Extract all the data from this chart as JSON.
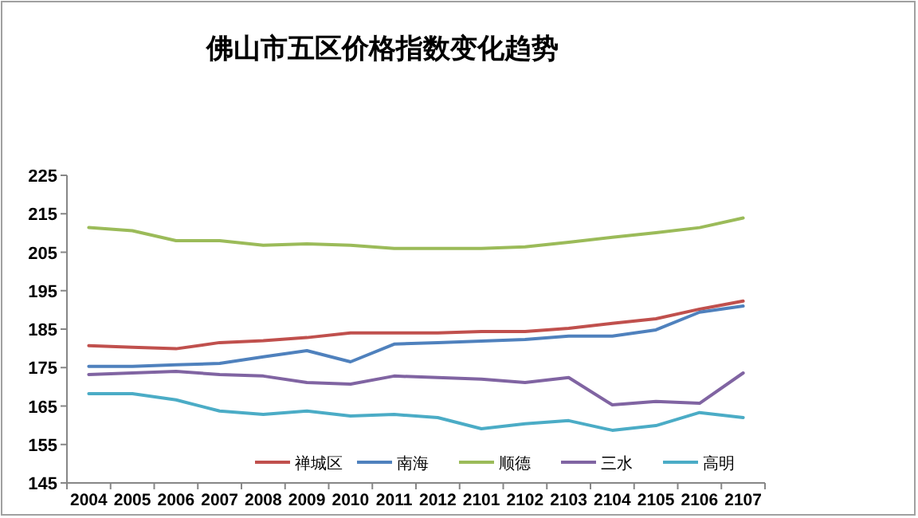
{
  "chart_data": {
    "type": "line",
    "title": "佛山市五区价格指数变化趋势",
    "categories": [
      "2004",
      "2005",
      "2006",
      "2007",
      "2008",
      "2009",
      "2010",
      "2011",
      "2012",
      "2101",
      "2102",
      "2103",
      "2104",
      "2105",
      "2106",
      "2107"
    ],
    "ylim": [
      145,
      225
    ],
    "yticks": [
      145,
      155,
      165,
      175,
      185,
      195,
      205,
      215,
      225
    ],
    "grid": false,
    "legend": "bottom",
    "marker": "none",
    "line_style": "solid",
    "series": [
      {
        "name": "禅城区",
        "color": "#c0504d",
        "values": [
          180.7,
          180.3,
          179.9,
          181.5,
          182,
          182.8,
          184,
          184,
          184,
          184.4,
          184.4,
          185.2,
          186.5,
          187.7,
          190.2,
          192.3
        ]
      },
      {
        "name": "南海",
        "color": "#4f81bd",
        "values": [
          175.3,
          175.3,
          175.7,
          176.1,
          177.8,
          179.4,
          176.5,
          181.1,
          181.5,
          181.9,
          182.3,
          183.2,
          183.2,
          184.8,
          189.4,
          191
        ]
      },
      {
        "name": "顺德",
        "color": "#9bbb59",
        "values": [
          211.4,
          210.6,
          208,
          208,
          206.8,
          207.2,
          206.8,
          206,
          206,
          206,
          206.4,
          207.6,
          208.9,
          210.1,
          211.4,
          213.9
        ]
      },
      {
        "name": "三水",
        "color": "#8064a2",
        "values": [
          173.2,
          173.6,
          174,
          173.2,
          172.8,
          171.1,
          170.7,
          172.8,
          172.4,
          172,
          171.1,
          172.4,
          165.3,
          166.2,
          165.7,
          173.6
        ]
      },
      {
        "name": "高明",
        "color": "#4bacc6",
        "values": [
          168.2,
          168.2,
          166.6,
          163.7,
          162.8,
          163.7,
          162.4,
          162.8,
          162,
          159.1,
          160.4,
          161.2,
          158.7,
          159.9,
          163.3,
          162
        ]
      }
    ]
  }
}
